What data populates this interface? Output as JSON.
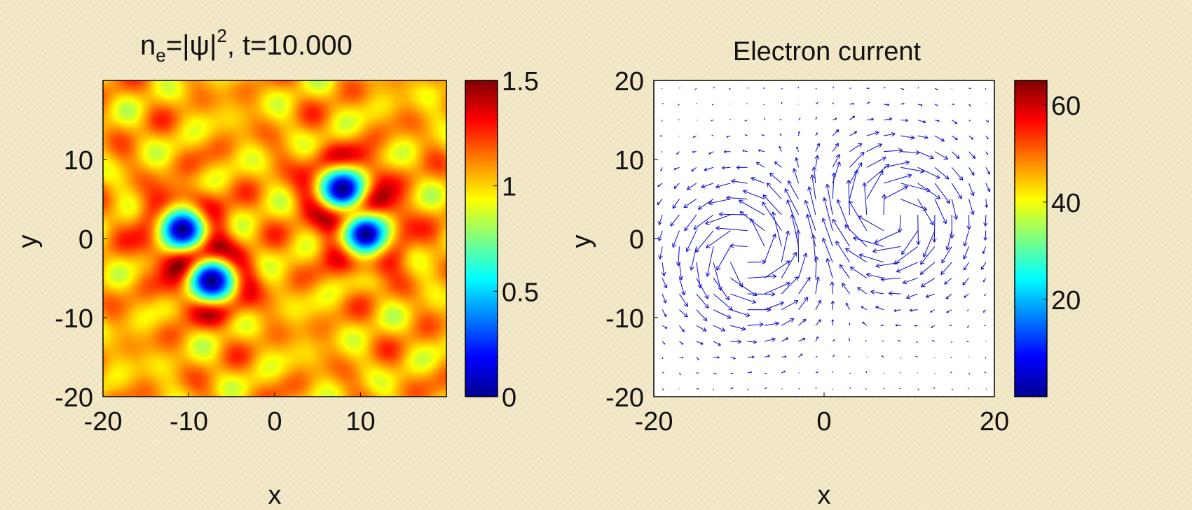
{
  "chart_data": [
    {
      "type": "heatmap",
      "title_main": "n",
      "title_sub": "e",
      "title_rest": "=|ψ|",
      "title_sup": "2",
      "title_time": ",  t=10.000",
      "xlabel": "x",
      "ylabel": "y",
      "xlim": [
        -20,
        20
      ],
      "ylim": [
        -20,
        20
      ],
      "xticks": [
        "-20",
        "-10",
        "0",
        "10"
      ],
      "yticks": [
        "-20",
        "-10",
        "0",
        "10"
      ],
      "colorbar": {
        "min": 0,
        "max": 1.5,
        "ticks": [
          "0",
          "0.5",
          "1",
          "1.5"
        ],
        "colormap": "jet"
      },
      "background_level": 1.05,
      "vortices": [
        {
          "x": -10.8,
          "y": 1.2,
          "depth": 1.0
        },
        {
          "x": -7.4,
          "y": -5.3,
          "depth": 1.0
        },
        {
          "x": 7.9,
          "y": 6.3,
          "depth": 1.0
        },
        {
          "x": 10.6,
          "y": 0.6,
          "depth": 1.0
        }
      ]
    },
    {
      "type": "quiver",
      "title": "Electron current",
      "xlabel": "x",
      "ylabel": "y",
      "xlim": [
        -20,
        20
      ],
      "ylim": [
        -20,
        20
      ],
      "xticks": [
        "-20",
        "0",
        "20"
      ],
      "yticks": [
        "-20",
        "-10",
        "0",
        "10",
        "20"
      ],
      "arrow_color": "#1a1acc",
      "grid_spacing": 2,
      "vortex_centers": [
        {
          "x": -9,
          "y": -2,
          "circulation": 1
        },
        {
          "x": 8,
          "y": 3,
          "circulation": -1
        }
      ],
      "colorbar": {
        "min": 0,
        "max": 65,
        "ticks": [
          "20",
          "40",
          "60"
        ],
        "colormap": "jet"
      }
    }
  ]
}
